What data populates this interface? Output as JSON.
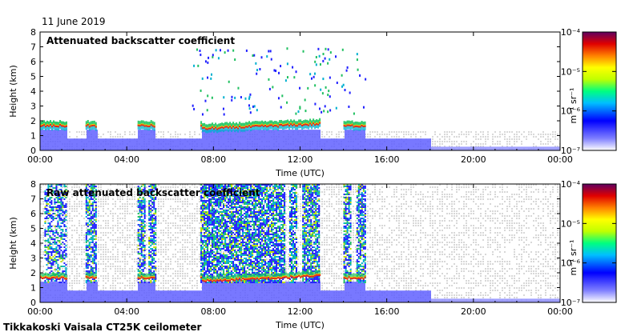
{
  "date_label": "11 June 2019",
  "site_label": "Tikkakoski Vaisala CT25K ceilometer",
  "chart_data": [
    {
      "type": "heatmap",
      "title": "Attenuated backscatter coefficient",
      "xlabel": "Time (UTC)",
      "ylabel": "Height (km)",
      "x_ticks": [
        "00:00",
        "04:00",
        "08:00",
        "12:00",
        "16:00",
        "20:00",
        "00:00"
      ],
      "xlim_hours": [
        0,
        24
      ],
      "ylim": [
        0,
        8
      ],
      "y_ticks": [
        "0",
        "1",
        "2",
        "3",
        "4",
        "5",
        "6",
        "7",
        "8"
      ],
      "colorbar": {
        "label": "m⁻¹ sr⁻¹",
        "scale": "log",
        "range": [
          1e-07,
          0.0001
        ],
        "tick_labels": [
          "10⁻⁴",
          "10⁻⁵",
          "10⁻⁶",
          "10⁻⁷"
        ]
      },
      "cloud_layer": {
        "height_km": 1.6,
        "description_segments_hours": [
          [
            0,
            1.2
          ],
          [
            2.1,
            2.6
          ],
          [
            4.5,
            5.3
          ],
          [
            7.4,
            12.9
          ],
          [
            14.0,
            15.0
          ]
        ]
      }
    },
    {
      "type": "heatmap",
      "title": "Raw attenuated backscatter coefficient",
      "xlabel": "Time (UTC)",
      "ylabel": "Height (km)",
      "x_ticks": [
        "00:00",
        "04:00",
        "08:00",
        "12:00",
        "16:00",
        "20:00",
        "00:00"
      ],
      "xlim_hours": [
        0,
        24
      ],
      "ylim": [
        0,
        8
      ],
      "y_ticks": [
        "0",
        "1",
        "2",
        "3",
        "4",
        "5",
        "6",
        "7",
        "8"
      ],
      "colorbar": {
        "label": "m⁻¹ sr⁻¹",
        "scale": "log",
        "range": [
          1e-07,
          0.0001
        ],
        "tick_labels": [
          "10⁻⁴",
          "10⁻⁵",
          "10⁻⁶",
          "10⁻⁷"
        ]
      },
      "cloud_layer": {
        "height_km": 1.6,
        "description_segments_hours": [
          [
            0,
            1.2
          ],
          [
            2.1,
            2.6
          ],
          [
            4.5,
            5.3
          ],
          [
            7.4,
            12.9
          ],
          [
            14.0,
            15.0
          ]
        ]
      }
    }
  ],
  "colors": {
    "noise_gray": "#d8d8d8",
    "low_blue": "#3c3cff",
    "mid_green": "#17c35a",
    "cloud_red": "#e02020"
  }
}
